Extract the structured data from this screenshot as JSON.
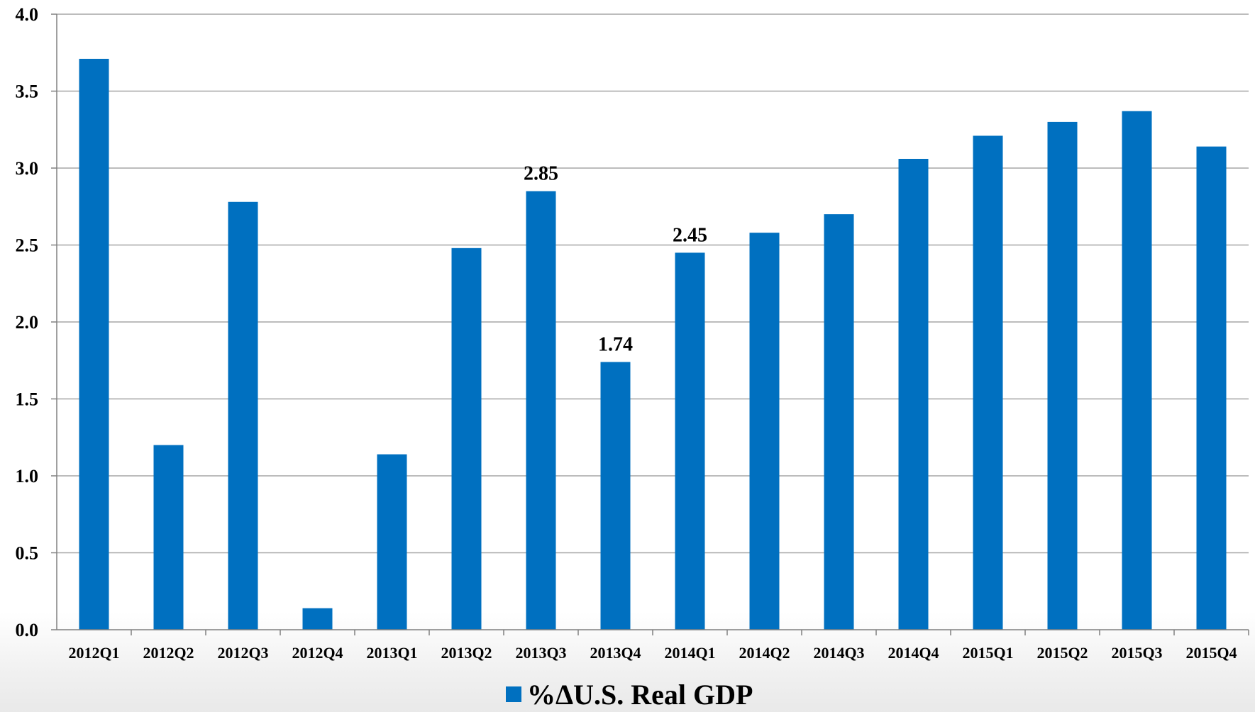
{
  "chart_data": {
    "type": "bar",
    "categories": [
      "2012Q1",
      "2012Q2",
      "2012Q3",
      "2012Q4",
      "2013Q1",
      "2013Q2",
      "2013Q3",
      "2013Q4",
      "2014Q1",
      "2014Q2",
      "2014Q3",
      "2014Q4",
      "2015Q1",
      "2015Q2",
      "2015Q3",
      "2015Q4"
    ],
    "series": [
      {
        "name": "%ΔU.S. Real GDP",
        "values": [
          3.71,
          1.2,
          2.78,
          0.14,
          1.14,
          2.48,
          2.85,
          1.74,
          2.45,
          2.58,
          2.7,
          3.06,
          3.21,
          3.3,
          3.37,
          3.14
        ]
      }
    ],
    "data_labels": [
      {
        "category": "2013Q3",
        "text": "2.85"
      },
      {
        "category": "2013Q4",
        "text": "1.74"
      },
      {
        "category": "2014Q1",
        "text": "2.45"
      }
    ],
    "y_ticks": [
      "0.0",
      "0.5",
      "1.0",
      "1.5",
      "2.0",
      "2.5",
      "3.0",
      "3.5",
      "4.0"
    ],
    "ylim": [
      0,
      4.0
    ],
    "grid": true,
    "legend_position": "bottom-center",
    "bar_color": "#0070C0",
    "grid_color": "#a6a6a6",
    "axis_color": "#808080"
  }
}
